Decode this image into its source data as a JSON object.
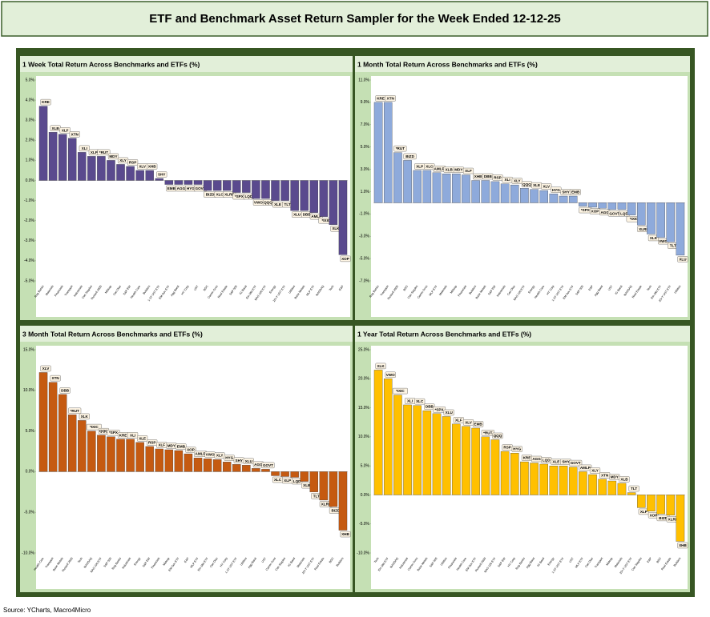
{
  "title": "ETF and Benchmark Asset Return Sampler for the Week Ended 12-12-25",
  "source": "Source: YCharts, Macro4Micro",
  "chart_data": [
    {
      "type": "bar",
      "title": "1 Week Total Return Across Benchmarks and ETFs (%)",
      "color": "#5a4a8e",
      "categories": [
        "Reg Banks",
        "Materials",
        "Financials",
        "Transport",
        "Industrials",
        "Con Staples",
        "Russell 2000",
        "Midcap",
        "Con Disc",
        "S&P EW",
        "Health Care",
        "Builders",
        "1-3Y UST ETF",
        "EM Sov ETF",
        "Agg Bond",
        "HY Corp",
        "UST",
        "BDC",
        "Comm Svcs",
        "Real Estate",
        "S&P 500",
        "IG Bond",
        "Em Mkt ETF",
        "NAS 100 ETF",
        "Energy",
        "20+Y UST ETF",
        "Utilities",
        "Base Metals",
        "MLP ETF",
        "NASDAQ",
        "Tech",
        "E&P"
      ],
      "labels": [
        "KRE",
        "XLB",
        "XLF",
        "XTN",
        "XLI",
        "XLP",
        "*RUT",
        "MDY",
        "XLY",
        "RSP",
        "XLV",
        "XHB",
        "SHY",
        "EMB",
        "AGG",
        "HYG",
        "GOVT",
        "BIZD",
        "XLC",
        "XLRE",
        "*SPX",
        "LQD",
        "VWO",
        "QQQ",
        "XLE",
        "TLT",
        "XLU",
        "DBB",
        "AMLP",
        "*IXIC",
        "XLK",
        "XOP"
      ],
      "values": [
        3.7,
        2.4,
        2.3,
        2.1,
        1.4,
        1.2,
        1.2,
        1.0,
        0.8,
        0.7,
        0.5,
        0.5,
        0.1,
        -0.2,
        -0.2,
        -0.2,
        -0.2,
        -0.5,
        -0.5,
        -0.5,
        -0.6,
        -0.6,
        -0.9,
        -0.9,
        -1.0,
        -1.0,
        -1.5,
        -1.5,
        -1.6,
        -1.8,
        -2.2,
        -3.7
      ],
      "ylim": [
        -5,
        5
      ],
      "yticks": [
        {
          "value": -5,
          "label": "-5.0%"
        },
        {
          "value": -4,
          "label": "-4.0%"
        },
        {
          "value": -3,
          "label": "-3.0%"
        },
        {
          "value": -2,
          "label": "-2.0%"
        },
        {
          "value": -1,
          "label": "-1.0%"
        },
        {
          "value": 0,
          "label": "0.0%"
        },
        {
          "value": 1,
          "label": "1.0%"
        },
        {
          "value": 2,
          "label": "2.0%"
        },
        {
          "value": 3,
          "label": "3.0%"
        },
        {
          "value": 4,
          "label": "4.0%"
        },
        {
          "value": 5,
          "label": "5.0%"
        }
      ]
    },
    {
      "type": "bar",
      "title": "1 Month Total Return Across Benchmarks and ETFs (%)",
      "color": "#8eaadb",
      "categories": [
        "Reg Banks",
        "Transport",
        "Russell 2000",
        "BDC",
        "Con Staples",
        "Comm Svcs",
        "MLP ETF",
        "Materials",
        "Midcap",
        "Financials",
        "Builders",
        "Base Metals",
        "S&P EW",
        "Industrials",
        "Con Disc",
        "NAS 100 ETF",
        "Energy",
        "Health Care",
        "HY Corp",
        "1-3Y UST ETF",
        "EM Sov ETF",
        "S&P 500",
        "E&P",
        "Agg Bond",
        "UST",
        "IG Bond",
        "NASDAQ",
        "Real Estate",
        "Tech",
        "Em Mkt ETF",
        "20+Y UST ETF",
        "Utilities"
      ],
      "labels": [
        "KRE",
        "XTN",
        "*RUT",
        "BIZD",
        "XLP",
        "XLC",
        "AMLP",
        "XLB",
        "MDY",
        "XLF",
        "XHB",
        "DBB",
        "RSP",
        "XLI",
        "XLY",
        "QQQ",
        "XLE",
        "XLV",
        "HYG",
        "SHY",
        "EMB",
        "*SPX",
        "XOP",
        "AGG",
        "GOVT",
        "LQD",
        "*IXIC",
        "XLRE",
        "XLK",
        "VWO",
        "TLT",
        "XLU"
      ],
      "values": [
        9.0,
        9.0,
        4.5,
        3.8,
        2.9,
        2.9,
        2.7,
        2.6,
        2.6,
        2.5,
        2.0,
        2.0,
        1.9,
        1.7,
        1.6,
        1.3,
        1.2,
        1.1,
        0.8,
        0.6,
        0.6,
        -0.3,
        -0.4,
        -0.5,
        -0.6,
        -0.6,
        -1.1,
        -2.0,
        -2.8,
        -3.1,
        -3.5,
        -4.7
      ],
      "ylim": [
        -7,
        11
      ],
      "yticks": [
        {
          "value": -7,
          "label": "-7.0%"
        },
        {
          "value": -5,
          "label": "-5.0%"
        },
        {
          "value": -3,
          "label": "-3.0%"
        },
        {
          "value": -1,
          "label": "-1.0%"
        },
        {
          "value": 1,
          "label": "1.0%"
        },
        {
          "value": 3,
          "label": "3.0%"
        },
        {
          "value": 5,
          "label": "5.0%"
        },
        {
          "value": 7,
          "label": "7.0%"
        },
        {
          "value": 9,
          "label": "9.0%"
        },
        {
          "value": 11,
          "label": "11.0%"
        }
      ]
    },
    {
      "type": "bar",
      "title": "3 Month Total Return Across Benchmarks and ETFs (%)",
      "color": "#c55a11",
      "categories": [
        "Health Care",
        "Transport",
        "Base Metals",
        "Russell 2000",
        "Tech",
        "NASDAQ",
        "NAS 100 ETF",
        "S&P 500",
        "Reg Banks",
        "Industrials",
        "Energy",
        "S&P EW",
        "Financials",
        "Midcap",
        "EM Sov ETF",
        "E&P",
        "MLP ETF",
        "Em Mkt ETF",
        "Con Disc",
        "HY Corp",
        "1-3Y UST ETF",
        "Utilities",
        "Agg Bond",
        "UST",
        "Comm Svcs",
        "Con Staples",
        "IG Bond",
        "Materials",
        "20+Y UST ETF",
        "Real Estate",
        "BDC",
        "Builders"
      ],
      "labels": [
        "XLV",
        "XTN",
        "DBB",
        "*RUT",
        "XLK",
        "*IXIC",
        "QQQ",
        "*SPX",
        "KRE",
        "XLI",
        "XLE",
        "RSP",
        "XLF",
        "MDY",
        "EMB",
        "XOP",
        "AMLP",
        "VWO",
        "XLY",
        "HYG",
        "SHY",
        "XLU",
        "AGG",
        "GOVT",
        "XLC",
        "XLP",
        "LQD",
        "XLB",
        "TLT",
        "XLRE",
        "BIZD",
        "XHB"
      ],
      "values": [
        12.2,
        11.0,
        9.5,
        7.0,
        6.3,
        5.0,
        4.5,
        4.3,
        4.0,
        4.0,
        3.6,
        3.1,
        2.8,
        2.7,
        2.6,
        2.2,
        1.7,
        1.6,
        1.5,
        1.2,
        0.9,
        0.8,
        0.4,
        0.3,
        -0.5,
        -0.6,
        -0.7,
        -1.2,
        -2.5,
        -3.5,
        -4.3,
        -7.2
      ],
      "ylim": [
        -10,
        15
      ],
      "yticks": [
        {
          "value": -10,
          "label": "-10.0%"
        },
        {
          "value": -5,
          "label": "-5.0%"
        },
        {
          "value": 0,
          "label": "0.0%"
        },
        {
          "value": 5,
          "label": "5.0%"
        },
        {
          "value": 10,
          "label": "10.0%"
        },
        {
          "value": 15,
          "label": "15.0%"
        }
      ]
    },
    {
      "type": "bar",
      "title": "1 Year Total Return Across Benchmarks and ETFs (%)",
      "color": "#ffc000",
      "categories": [
        "Tech",
        "Em Mkt ETF",
        "NASDAQ",
        "Industrials",
        "Comm Svcs",
        "Base Metals",
        "S&P 500",
        "Utilities",
        "Financials",
        "Health Care",
        "EM Sov ETF",
        "Russell 2000",
        "NAS 100 ETF",
        "S&P EW",
        "HY Corp",
        "Reg Banks",
        "Agg Bond",
        "IG Bond",
        "Energy",
        "1-3Y UST ETF",
        "UST",
        "MLP ETF",
        "Con Disc",
        "Transport",
        "Midcap",
        "Materials",
        "20+Y UST ETF",
        "Con Staples",
        "E&P",
        "BDC",
        "Real Estate",
        "Builders"
      ],
      "labels": [
        "XLK",
        "VWO",
        "*IXIC",
        "XLI",
        "XLC",
        "DBB",
        "*SPX",
        "XLU",
        "XLF",
        "XLV",
        "EMB",
        "*RUT",
        "QQQ",
        "RSP",
        "HYG",
        "KRE",
        "AGG",
        "LQD",
        "XLE",
        "SHY",
        "GOVT",
        "AMLP",
        "XLY",
        "XTN",
        "MDY",
        "XLB",
        "TLT",
        "XLP",
        "XOP",
        "BIZD",
        "XLRE",
        "XHB"
      ],
      "values": [
        21.5,
        20.0,
        17.2,
        15.5,
        15.4,
        14.5,
        14.0,
        13.5,
        12.2,
        11.8,
        11.5,
        10.0,
        9.5,
        7.5,
        7.2,
        5.7,
        5.5,
        5.3,
        5.0,
        5.0,
        4.8,
        4.0,
        3.5,
        2.7,
        2.4,
        2.0,
        0.4,
        -2.2,
        -2.8,
        -3.3,
        -3.5,
        -8.0
      ],
      "ylim": [
        -10,
        25
      ],
      "yticks": [
        {
          "value": -10,
          "label": "-10.0%"
        },
        {
          "value": -5,
          "label": "-5.0%"
        },
        {
          "value": 0,
          "label": "0.0%"
        },
        {
          "value": 5,
          "label": "5.0%"
        },
        {
          "value": 10,
          "label": "10.0%"
        },
        {
          "value": 15,
          "label": "15.0%"
        },
        {
          "value": 20,
          "label": "20.0%"
        },
        {
          "value": 25,
          "label": "25.0%"
        }
      ]
    }
  ]
}
